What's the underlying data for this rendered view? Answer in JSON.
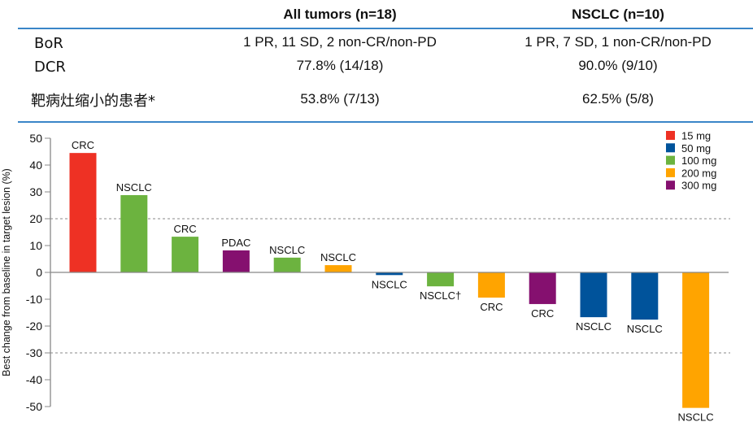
{
  "table": {
    "columns": [
      "All tumors (n=18)",
      "NSCLC (n=10)"
    ],
    "rows": [
      {
        "label": "BoR",
        "values": [
          "1 PR, 11 SD, 2 non-CR/non-PD",
          "1 PR, 7 SD, 1 non-CR/non-PD"
        ]
      },
      {
        "label": "DCR",
        "values": [
          "77.8% (14/18)",
          "90.0% (9/10)"
        ]
      },
      {
        "label": "靶病灶缩小的患者*",
        "values": [
          "53.8% (7/13)",
          "62.5% (5/8)"
        ]
      }
    ]
  },
  "chart_data": {
    "type": "bar",
    "title": "",
    "xlabel": "",
    "ylabel": "Best change from baseline in target lesion (%)",
    "ylim": [
      -50,
      50
    ],
    "yticks": [
      50,
      40,
      30,
      20,
      10,
      0,
      -10,
      -20,
      -30,
      -40,
      -50
    ],
    "reference_lines": [
      20,
      -30
    ],
    "grid": false,
    "legend_position": "top-right",
    "legend": [
      {
        "name": "15 mg",
        "color": "#ee3124"
      },
      {
        "name": "50 mg",
        "color": "#00539b"
      },
      {
        "name": "100 mg",
        "color": "#6cb33f"
      },
      {
        "name": "200 mg",
        "color": "#ffa400"
      },
      {
        "name": "300 mg",
        "color": "#85106f"
      }
    ],
    "bars": [
      {
        "label": "CRC",
        "value": 44.5,
        "dose": "15 mg"
      },
      {
        "label": "NSCLC",
        "value": 28.8,
        "dose": "100 mg"
      },
      {
        "label": "CRC",
        "value": 13.3,
        "dose": "100 mg"
      },
      {
        "label": "PDAC",
        "value": 8.2,
        "dose": "300 mg"
      },
      {
        "label": "NSCLC",
        "value": 5.5,
        "dose": "100 mg"
      },
      {
        "label": "NSCLC",
        "value": 2.7,
        "dose": "200 mg"
      },
      {
        "label": "NSCLC",
        "value": -1.0,
        "dose": "50 mg"
      },
      {
        "label": "NSCLC†",
        "value": -5.2,
        "dose": "100 mg"
      },
      {
        "label": "CRC",
        "value": -9.4,
        "dose": "200 mg"
      },
      {
        "label": "CRC",
        "value": -11.8,
        "dose": "300 mg"
      },
      {
        "label": "NSCLC",
        "value": -16.7,
        "dose": "50 mg"
      },
      {
        "label": "NSCLC",
        "value": -17.6,
        "dose": "50 mg"
      },
      {
        "label": "NSCLC",
        "value": -50.5,
        "dose": "200 mg"
      }
    ]
  }
}
